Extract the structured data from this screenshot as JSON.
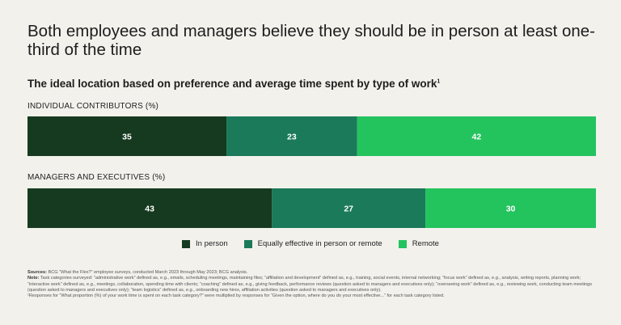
{
  "headline": "Both employees and managers believe they should be in person at least one-third of the time",
  "subtitle": "The ideal location based on preference and average time spent by type of work",
  "subtitle_footnote": "1",
  "colors": {
    "in_person": "#163a20",
    "equally_effective": "#1a7a5a",
    "remote": "#23c35e",
    "label_text": "#ffffff"
  },
  "chart_data": {
    "type": "bar",
    "orientation": "horizontal-stacked",
    "unit": "%",
    "categories": [
      "INDIVIDUAL CONTRIBUTORS (%)",
      "MANAGERS AND EXECUTIVES (%)"
    ],
    "series": [
      {
        "name": "In person",
        "values": [
          35,
          43
        ]
      },
      {
        "name": "Equally effective in person or remote",
        "values": [
          23,
          27
        ]
      },
      {
        "name": "Remote",
        "values": [
          42,
          30
        ]
      }
    ],
    "xlim": [
      0,
      100
    ],
    "legend_position": "bottom-center",
    "grid": false
  },
  "notes": {
    "sources_label": "Sources:",
    "sources_text": "BCG “What the Flex?” employee surveys, conducted March 2023 through May 2023; BCG analysis.",
    "note_label": "Note:",
    "note_text": "Task categories surveyed: “administrative work” defined as, e.g., emails, scheduling meetings, maintaining files; “affiliation and development” defined as, e.g., training, social events, internal networking; “focus work” defined as, e.g., analysis, writing reports, planning work; “interactive work” defined as, e.g., meetings, collaboration, spending time with clients; “coaching” defined as, e.g., giving feedback, performance reviews (question asked to managers and executives only); “overseeing work” defined as, e.g., reviewing work, conducting team meetings (question asked to managers and executives only); “team logistics” defined as, e.g., onboarding new hires, affiliation activities (question asked to managers and executives only).",
    "footnote": "¹Responses for “What proportion (%) of your work time is spent on each task category?” were multiplied by responses for “Given the option, where do you do your most effective...” for each task category listed."
  }
}
